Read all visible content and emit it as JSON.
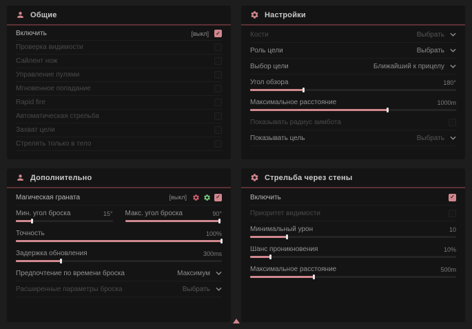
{
  "colors": {
    "accent_pink": "#d2878e",
    "header_underline": "#5c3036",
    "status_red": "#cf5f6e",
    "status_green": "#76c379",
    "panel_background": "#141414"
  },
  "panels": {
    "general": {
      "title": "Общие",
      "rows": [
        {
          "label": "Включить",
          "tag": "[выкл]",
          "checked": true
        },
        {
          "label": "Проверка видимости",
          "checked": false
        },
        {
          "label": "Сайлент нож",
          "checked": false
        },
        {
          "label": "Управление пулями",
          "checked": false
        },
        {
          "label": "Мгновенное попадание",
          "checked": false
        },
        {
          "label": "Rapid fire",
          "checked": false
        },
        {
          "label": "Автоматическая стрельба",
          "checked": false
        },
        {
          "label": "Захват цели",
          "checked": false
        },
        {
          "label": "Стрелять только в тело",
          "checked": false
        }
      ]
    },
    "settings": {
      "title": "Настройки",
      "rows": [
        {
          "label": "Кости",
          "value": "Выбрать"
        },
        {
          "label": "Роль цели",
          "value": "Выбрать"
        },
        {
          "label": "Выбор цели",
          "value": "Ближайший к прицелу"
        },
        {
          "label": "Угол обзора",
          "value": "180°",
          "fill": 26
        },
        {
          "label": "Максимальное расстояние",
          "value": "1000m",
          "fill": 67
        },
        {
          "label": "Показывать радиус аимбота",
          "checked": false
        },
        {
          "label": "Показывать цель",
          "value": "Выбрать"
        }
      ]
    },
    "additional": {
      "title": "Дополнительно",
      "rows": [
        {
          "label": "Магическая граната",
          "tag": "[выкл]",
          "checked": true
        },
        {
          "left": {
            "label": "Мин. угол броска",
            "value": "15°",
            "fill": 17
          },
          "right": {
            "label": "Макс. угол броска",
            "value": "90°",
            "fill": 98
          }
        },
        {
          "label": "Точность",
          "value": "100%",
          "fill": 100
        },
        {
          "label": "Задержка обновления",
          "value": "300ms",
          "fill": 22
        },
        {
          "label": "Предпочтение по времени броска",
          "value": "Максимум"
        },
        {
          "label": "Расширенные параметры броска",
          "value": "Выбрать"
        }
      ]
    },
    "wallbang": {
      "title": "Стрельба через стены",
      "rows": [
        {
          "label": "Включить",
          "checked": true
        },
        {
          "label": "Приоритет видимости",
          "checked": false
        },
        {
          "label": "Минимальный урон",
          "value": "10",
          "fill": 18
        },
        {
          "label": "Шанс проникновения",
          "value": "10%",
          "fill": 10
        },
        {
          "label": "Максимальное расстояние",
          "value": "500m",
          "fill": 31
        }
      ]
    }
  }
}
